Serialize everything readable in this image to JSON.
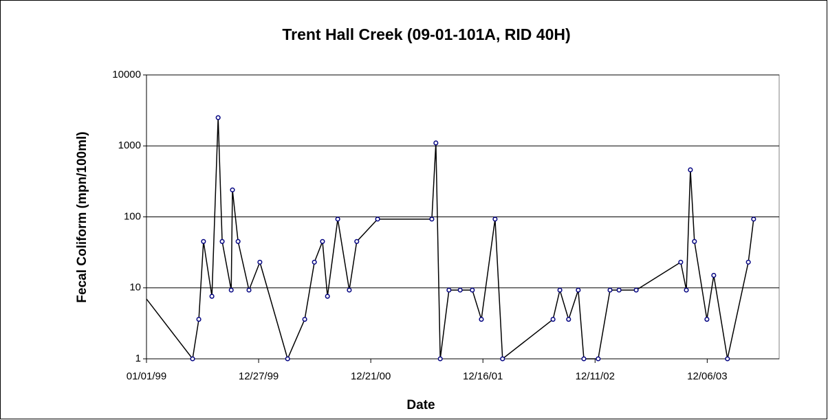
{
  "chart_data": {
    "type": "line",
    "title": "Trent Hall Creek (09-01-101A, RID 40H)",
    "x_label": "Date",
    "y_label": "Fecal Coliform (mpn/100ml)",
    "log_scale_y": true,
    "grid": true,
    "xlim": [
      "1999-01-01",
      "2004-07-24"
    ],
    "xticks": [
      {
        "value": "1999-01-01",
        "label": "01/01/99"
      },
      {
        "value": "1999-12-27",
        "label": "12/27/99"
      },
      {
        "value": "2000-12-21",
        "label": "12/21/00"
      },
      {
        "value": "2001-12-16",
        "label": "12/16/01"
      },
      {
        "value": "2002-12-11",
        "label": "12/11/02"
      },
      {
        "value": "2003-12-06",
        "label": "12/06/03"
      }
    ],
    "ylim": [
      1,
      10000
    ],
    "yticks": [
      1,
      10,
      100,
      1000,
      10000
    ],
    "x": [
      "1998-12-10",
      "1999-05-29",
      "1999-06-18",
      "1999-07-03",
      "1999-07-30",
      "1999-08-19",
      "1999-09-01",
      "1999-09-30",
      "1999-10-04",
      "1999-10-22",
      "1999-11-26",
      "1999-12-31",
      "2000-03-29",
      "2000-05-23",
      "2000-06-23",
      "2000-07-19",
      "2000-08-04",
      "2000-09-06",
      "2000-10-13",
      "2000-11-06",
      "2001-01-12",
      "2001-07-05",
      "2001-07-18",
      "2001-08-01",
      "2001-08-29",
      "2001-10-04",
      "2001-11-12",
      "2001-12-11",
      "2002-01-24",
      "2002-02-17",
      "2002-07-29",
      "2002-08-20",
      "2002-09-17",
      "2002-10-18",
      "2002-11-05",
      "2002-12-21",
      "2003-01-28",
      "2003-02-26",
      "2003-04-22",
      "2003-09-12",
      "2003-09-30",
      "2003-10-13",
      "2003-10-26",
      "2003-12-05",
      "2003-12-27",
      "2004-02-09",
      "2004-04-16",
      "2004-05-03"
    ],
    "series": [
      {
        "name": "Fecal Coliform",
        "color": "#000000",
        "marker_color": "#000080",
        "values": [
          9.3,
          1,
          3.6,
          45,
          7.6,
          2500,
          45,
          9.3,
          240,
          45,
          9.3,
          23,
          1,
          3.6,
          23,
          45,
          7.6,
          93,
          9.3,
          45,
          93,
          93,
          1100,
          1,
          9.3,
          9.3,
          9.3,
          3.6,
          93,
          1,
          3.6,
          9.3,
          3.6,
          9.3,
          1,
          1,
          9.3,
          9.3,
          9.3,
          23,
          9.3,
          460,
          45,
          3.6,
          15,
          1,
          23,
          93
        ]
      }
    ]
  }
}
